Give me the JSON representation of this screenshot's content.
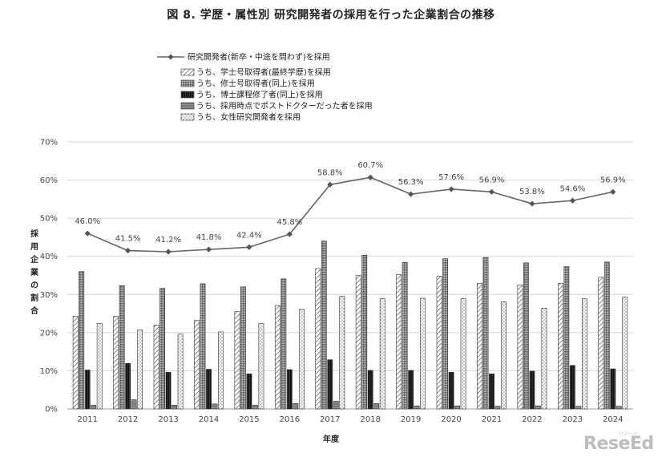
{
  "chart_data": {
    "type": "bar",
    "title": "図 8. 学歴・属性別 研究開発者の採用を行った企業割合の推移",
    "xlabel": "年度",
    "ylabel": "採用企業の割合",
    "categories": [
      "2011",
      "2012",
      "2013",
      "2014",
      "2015",
      "2016",
      "2017",
      "2018",
      "2019",
      "2020",
      "2021",
      "2022",
      "2023",
      "2024"
    ],
    "yticks": [
      "0%",
      "10%",
      "20%",
      "30%",
      "40%",
      "50%",
      "60%",
      "70%"
    ],
    "ylim": [
      0,
      70
    ],
    "grid": true,
    "legend_position": "top-left",
    "line": {
      "name": "研究開発者(新卒・中途を問わず)を採用",
      "values": [
        46.0,
        41.5,
        41.2,
        41.8,
        42.4,
        45.8,
        58.8,
        60.7,
        56.3,
        57.6,
        56.9,
        53.8,
        54.6,
        56.9
      ],
      "labels": [
        "46.0%",
        "41.5%",
        "41.2%",
        "41.8%",
        "42.4%",
        "45.8%",
        "58.8%",
        "60.7%",
        "56.3%",
        "57.6%",
        "56.9%",
        "53.8%",
        "54.6%",
        "56.9%"
      ]
    },
    "series": [
      {
        "name": "うち、学士号取得者(最終学歴)を採用",
        "values": [
          24.3,
          24.3,
          22.0,
          23.2,
          25.5,
          27.1,
          36.8,
          35.0,
          35.2,
          34.8,
          32.9,
          32.5,
          32.9,
          34.5
        ]
      },
      {
        "name": "うち、修士号取得者(同上)を採用",
        "values": [
          36.0,
          32.3,
          31.6,
          32.8,
          32.0,
          34.1,
          44.0,
          40.3,
          38.4,
          39.4,
          39.7,
          38.3,
          37.3,
          38.5
        ]
      },
      {
        "name": "うち、博士課程修了者(同上)を採用",
        "values": [
          10.2,
          11.9,
          9.6,
          10.4,
          9.2,
          10.3,
          12.9,
          10.1,
          10.1,
          9.6,
          9.2,
          9.9,
          11.4,
          10.5
        ]
      },
      {
        "name": "うち、採用時点でポストドクターだった者を採用",
        "values": [
          1.0,
          2.4,
          1.0,
          1.3,
          1.0,
          1.4,
          2.0,
          1.4,
          0.8,
          0.8,
          0.7,
          0.8,
          0.7,
          0.7
        ]
      },
      {
        "name": "うち、女性研究開発者を採用",
        "values": [
          22.4,
          20.7,
          19.6,
          20.2,
          22.4,
          26.1,
          29.5,
          28.9,
          29.0,
          28.9,
          28.1,
          26.4,
          28.9,
          29.3
        ]
      }
    ]
  },
  "watermark": {
    "text": "ReseEd",
    "sub": "リシード"
  }
}
